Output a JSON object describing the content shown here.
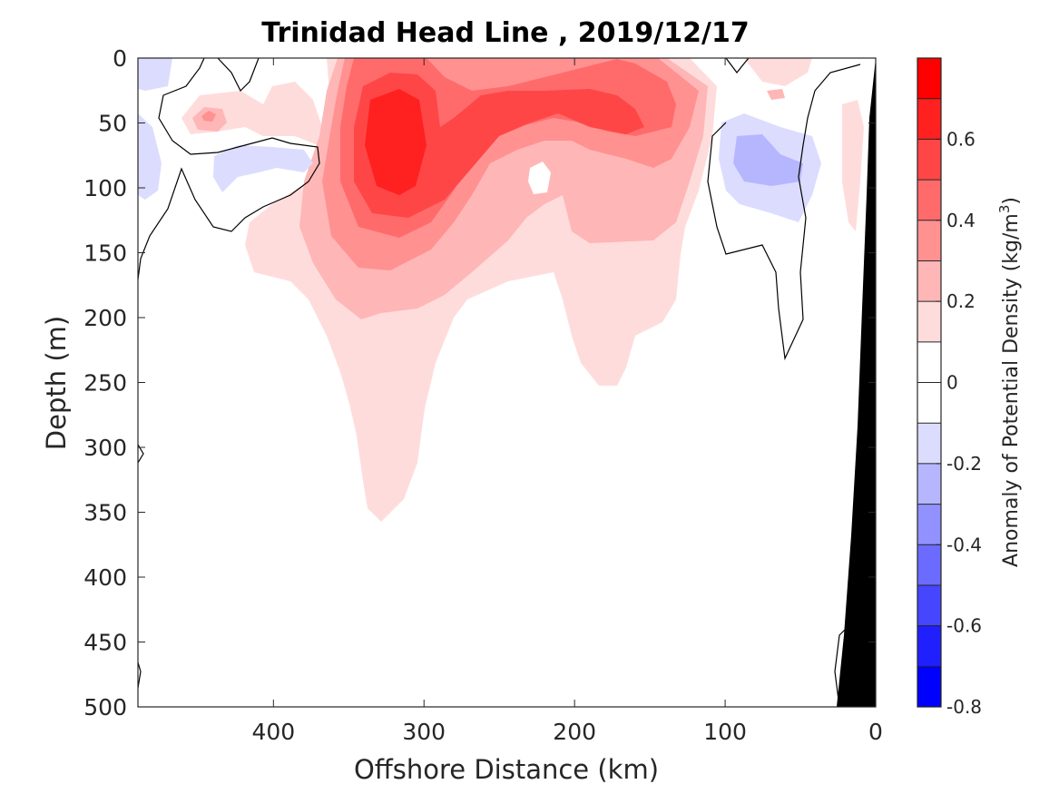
{
  "chart_data": {
    "type": "heatmap",
    "subtype": "contour-section",
    "title": "Trinidad Head Line , 2019/12/17",
    "xlabel": "Offshore Distance (km)",
    "ylabel": "Depth (m)",
    "xlim": [
      490,
      0
    ],
    "ylim": [
      0,
      500
    ],
    "x_reversed": true,
    "y_reversed": true,
    "xticks": [
      400,
      300,
      200,
      100,
      0
    ],
    "yticks": [
      0,
      50,
      100,
      150,
      200,
      250,
      300,
      350,
      400,
      450,
      500
    ],
    "colorbar": {
      "label": "Anomaly of Potential Density (kg/m",
      "label_superscript": "3",
      "label_suffix": ")",
      "range": [
        -0.8,
        0.8
      ],
      "levels": [
        -0.8,
        -0.7,
        -0.6,
        -0.5,
        -0.4,
        -0.3,
        -0.2,
        -0.1,
        0,
        0.1,
        0.2,
        0.3,
        0.4,
        0.5,
        0.6,
        0.7,
        0.8
      ],
      "ticks": [
        0.6,
        0.4,
        0.2,
        0,
        -0.2,
        -0.4,
        -0.6,
        -0.8
      ],
      "colors": [
        "#0000ff",
        "#2020ff",
        "#4646ff",
        "#6b6bff",
        "#9191ff",
        "#b6b6ff",
        "#dcdcff",
        "#ffffff",
        "#ffffff",
        "#ffdcdc",
        "#ffb6b6",
        "#ff9191",
        "#ff6b6b",
        "#ff4646",
        "#ff2020",
        "#ff0000"
      ]
    },
    "features": [
      {
        "kind": "positive-anomaly-core",
        "x_km": 315,
        "depth_m": 70,
        "peak_value": 0.6
      },
      {
        "kind": "positive-anomaly-core",
        "x_km": 180,
        "depth_m": 50,
        "peak_value": 0.5
      },
      {
        "kind": "negative-anomaly",
        "x_km": 70,
        "depth_m": 90,
        "min_value": -0.3
      },
      {
        "kind": "negative-anomaly",
        "x_km": 420,
        "depth_m": 80,
        "min_value": -0.2
      },
      {
        "kind": "topography",
        "color": "#000000",
        "shelf_x_km": 0,
        "deep_x_km": 26
      }
    ]
  }
}
